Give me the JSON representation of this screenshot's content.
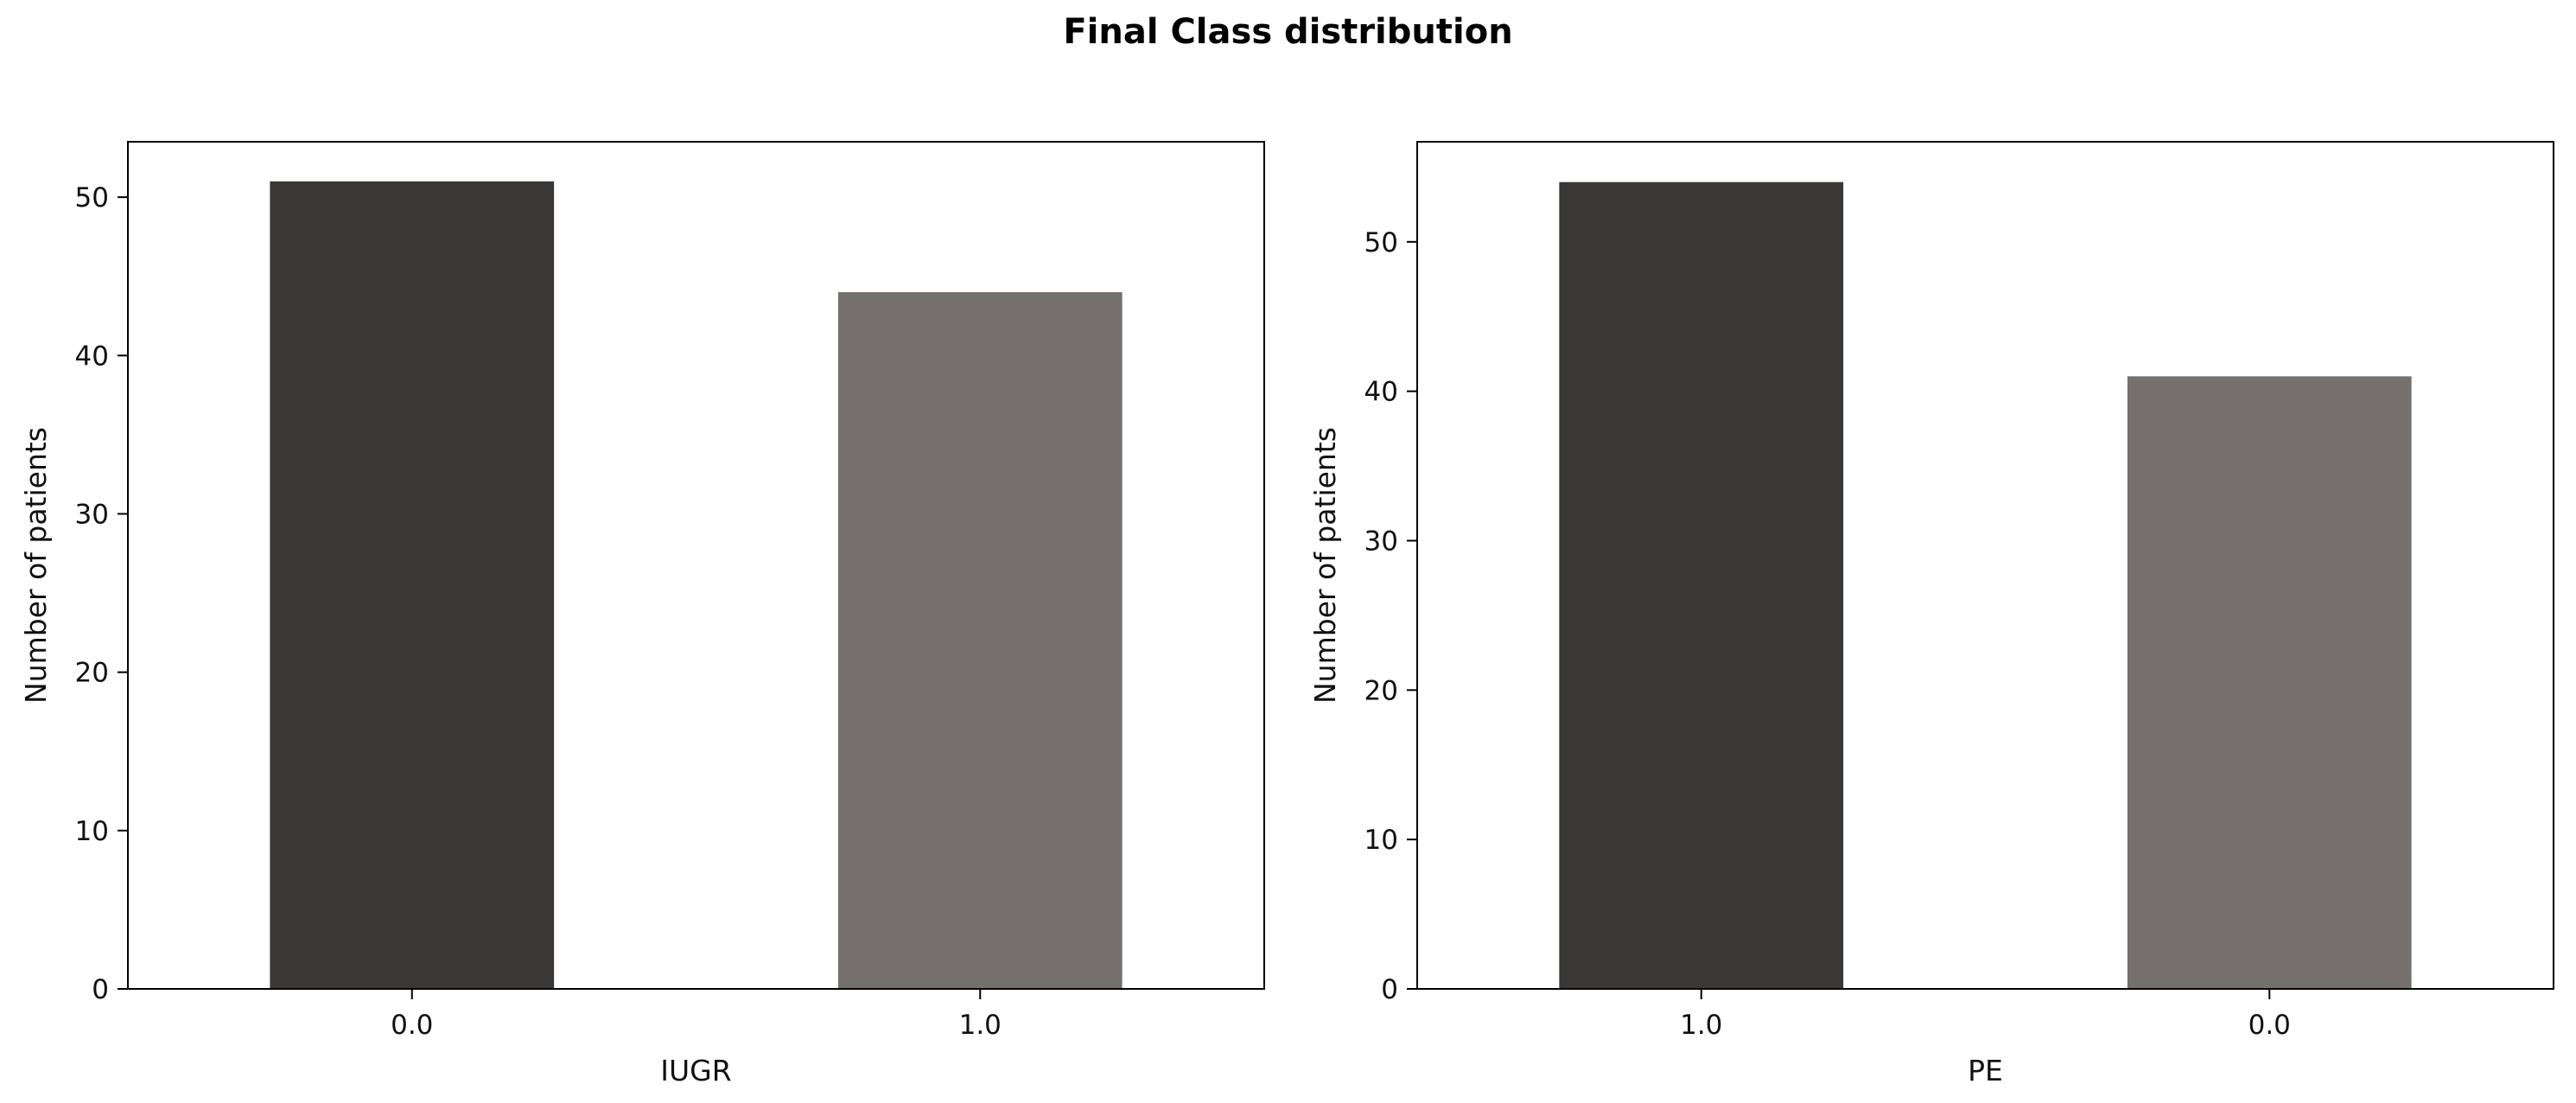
{
  "figure_title": "Final Class distribution",
  "colors": {
    "bar_primary": "#3a3836",
    "bar_secondary": "#75706d",
    "axis": "#000000"
  },
  "chart_data": [
    {
      "type": "bar",
      "categories": [
        "0.0",
        "1.0"
      ],
      "values": [
        51,
        44
      ],
      "xlabel": "IUGR",
      "ylabel": "Number of patients",
      "ylim": [
        0,
        53.5
      ],
      "yticks": [
        0,
        10,
        20,
        30,
        40,
        50
      ],
      "grid": false
    },
    {
      "type": "bar",
      "categories": [
        "1.0",
        "0.0"
      ],
      "values": [
        54,
        41
      ],
      "xlabel": "PE",
      "ylabel": "Number of patients",
      "ylim": [
        0,
        56.7
      ],
      "yticks": [
        0,
        10,
        20,
        30,
        40,
        50
      ],
      "grid": false
    }
  ]
}
